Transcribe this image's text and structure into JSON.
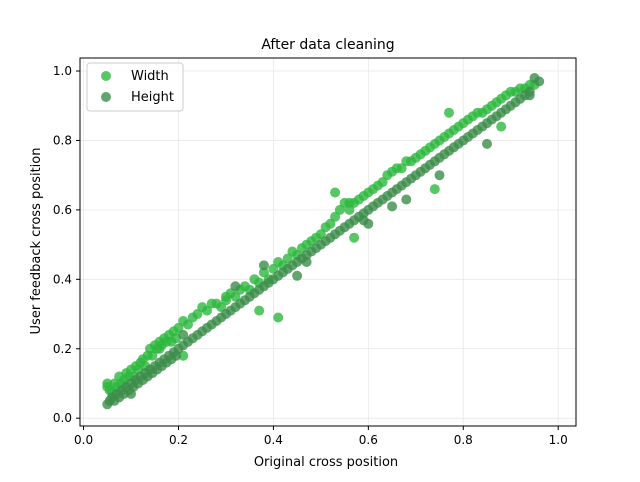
{
  "chart_data": {
    "type": "scatter",
    "title": "After data cleaning",
    "xlabel": "Original cross position",
    "ylabel": "User feedback cross position",
    "xlim": [
      -0.0075,
      1.0375
    ],
    "ylim": [
      -0.0225,
      1.0375
    ],
    "xticks": [
      0.0,
      0.2,
      0.4,
      0.6,
      0.8,
      1.0
    ],
    "xtick_labels": [
      "0.0",
      "0.2",
      "0.4",
      "0.6",
      "0.8",
      "1.0"
    ],
    "yticks": [
      0.0,
      0.2,
      0.4,
      0.6,
      0.8,
      1.0
    ],
    "ytick_labels": [
      "0.0",
      "0.2",
      "0.4",
      "0.6",
      "0.8",
      "1.0"
    ],
    "grid": true,
    "legend_position": "top-left",
    "series": [
      {
        "name": "Width",
        "color": "#2db83d",
        "points": [
          [
            0.05,
            0.09
          ],
          [
            0.05,
            0.1
          ],
          [
            0.055,
            0.08
          ],
          [
            0.06,
            0.075
          ],
          [
            0.065,
            0.1
          ],
          [
            0.07,
            0.09
          ],
          [
            0.075,
            0.12
          ],
          [
            0.08,
            0.1
          ],
          [
            0.085,
            0.11
          ],
          [
            0.09,
            0.13
          ],
          [
            0.095,
            0.12
          ],
          [
            0.1,
            0.14
          ],
          [
            0.105,
            0.12
          ],
          [
            0.11,
            0.15
          ],
          [
            0.115,
            0.14
          ],
          [
            0.12,
            0.16
          ],
          [
            0.125,
            0.17
          ],
          [
            0.13,
            0.15
          ],
          [
            0.135,
            0.18
          ],
          [
            0.14,
            0.2
          ],
          [
            0.145,
            0.18
          ],
          [
            0.15,
            0.21
          ],
          [
            0.155,
            0.2
          ],
          [
            0.16,
            0.22
          ],
          [
            0.165,
            0.21
          ],
          [
            0.17,
            0.23
          ],
          [
            0.175,
            0.22
          ],
          [
            0.18,
            0.24
          ],
          [
            0.185,
            0.22
          ],
          [
            0.19,
            0.25
          ],
          [
            0.195,
            0.23
          ],
          [
            0.2,
            0.26
          ],
          [
            0.21,
            0.28
          ],
          [
            0.22,
            0.27
          ],
          [
            0.23,
            0.29
          ],
          [
            0.24,
            0.3
          ],
          [
            0.25,
            0.32
          ],
          [
            0.26,
            0.31
          ],
          [
            0.27,
            0.33
          ],
          [
            0.28,
            0.33
          ],
          [
            0.29,
            0.32
          ],
          [
            0.3,
            0.34
          ],
          [
            0.31,
            0.36
          ],
          [
            0.32,
            0.35
          ],
          [
            0.33,
            0.37
          ],
          [
            0.34,
            0.38
          ],
          [
            0.35,
            0.37
          ],
          [
            0.36,
            0.4
          ],
          [
            0.37,
            0.39
          ],
          [
            0.38,
            0.42
          ],
          [
            0.39,
            0.4
          ],
          [
            0.4,
            0.43
          ],
          [
            0.41,
            0.45
          ],
          [
            0.42,
            0.44
          ],
          [
            0.43,
            0.46
          ],
          [
            0.44,
            0.48
          ],
          [
            0.45,
            0.47
          ],
          [
            0.46,
            0.49
          ],
          [
            0.47,
            0.5
          ],
          [
            0.48,
            0.51
          ],
          [
            0.49,
            0.52
          ],
          [
            0.5,
            0.53
          ],
          [
            0.51,
            0.55
          ],
          [
            0.52,
            0.56
          ],
          [
            0.53,
            0.58
          ],
          [
            0.54,
            0.6
          ],
          [
            0.55,
            0.62
          ],
          [
            0.56,
            0.6
          ],
          [
            0.57,
            0.62
          ],
          [
            0.58,
            0.63
          ],
          [
            0.59,
            0.64
          ],
          [
            0.6,
            0.65
          ],
          [
            0.61,
            0.66
          ],
          [
            0.62,
            0.67
          ],
          [
            0.63,
            0.68
          ],
          [
            0.64,
            0.7
          ],
          [
            0.65,
            0.71
          ],
          [
            0.66,
            0.72
          ],
          [
            0.67,
            0.72
          ],
          [
            0.68,
            0.74
          ],
          [
            0.69,
            0.74
          ],
          [
            0.7,
            0.75
          ],
          [
            0.71,
            0.76
          ],
          [
            0.72,
            0.77
          ],
          [
            0.73,
            0.78
          ],
          [
            0.74,
            0.79
          ],
          [
            0.75,
            0.8
          ],
          [
            0.76,
            0.81
          ],
          [
            0.77,
            0.82
          ],
          [
            0.78,
            0.83
          ],
          [
            0.79,
            0.84
          ],
          [
            0.8,
            0.85
          ],
          [
            0.81,
            0.86
          ],
          [
            0.82,
            0.87
          ],
          [
            0.83,
            0.88
          ],
          [
            0.84,
            0.88
          ],
          [
            0.85,
            0.89
          ],
          [
            0.86,
            0.9
          ],
          [
            0.87,
            0.91
          ],
          [
            0.88,
            0.92
          ],
          [
            0.89,
            0.93
          ],
          [
            0.9,
            0.94
          ],
          [
            0.91,
            0.94
          ],
          [
            0.92,
            0.95
          ],
          [
            0.93,
            0.95
          ],
          [
            0.94,
            0.96
          ],
          [
            0.95,
            0.96
          ],
          [
            0.74,
            0.66
          ],
          [
            0.56,
            0.62
          ],
          [
            0.37,
            0.31
          ],
          [
            0.21,
            0.18
          ],
          [
            0.41,
            0.29
          ],
          [
            0.57,
            0.52
          ],
          [
            0.53,
            0.65
          ],
          [
            0.3,
            0.35
          ],
          [
            0.77,
            0.88
          ],
          [
            0.16,
            0.2
          ],
          [
            0.88,
            0.84
          ]
        ]
      },
      {
        "name": "Height",
        "color": "#3c8d4a",
        "points": [
          [
            0.05,
            0.04
          ],
          [
            0.055,
            0.05
          ],
          [
            0.06,
            0.06
          ],
          [
            0.065,
            0.05
          ],
          [
            0.07,
            0.07
          ],
          [
            0.075,
            0.06
          ],
          [
            0.08,
            0.08
          ],
          [
            0.085,
            0.07
          ],
          [
            0.09,
            0.09
          ],
          [
            0.095,
            0.08
          ],
          [
            0.1,
            0.1
          ],
          [
            0.105,
            0.09
          ],
          [
            0.11,
            0.11
          ],
          [
            0.115,
            0.1
          ],
          [
            0.12,
            0.12
          ],
          [
            0.125,
            0.11
          ],
          [
            0.13,
            0.13
          ],
          [
            0.135,
            0.12
          ],
          [
            0.14,
            0.14
          ],
          [
            0.145,
            0.13
          ],
          [
            0.15,
            0.15
          ],
          [
            0.155,
            0.14
          ],
          [
            0.16,
            0.16
          ],
          [
            0.165,
            0.15
          ],
          [
            0.17,
            0.17
          ],
          [
            0.175,
            0.16
          ],
          [
            0.18,
            0.18
          ],
          [
            0.185,
            0.17
          ],
          [
            0.19,
            0.19
          ],
          [
            0.195,
            0.18
          ],
          [
            0.2,
            0.2
          ],
          [
            0.21,
            0.21
          ],
          [
            0.22,
            0.22
          ],
          [
            0.23,
            0.23
          ],
          [
            0.24,
            0.24
          ],
          [
            0.25,
            0.25
          ],
          [
            0.26,
            0.26
          ],
          [
            0.27,
            0.27
          ],
          [
            0.28,
            0.28
          ],
          [
            0.29,
            0.29
          ],
          [
            0.3,
            0.3
          ],
          [
            0.31,
            0.31
          ],
          [
            0.32,
            0.32
          ],
          [
            0.33,
            0.33
          ],
          [
            0.34,
            0.34
          ],
          [
            0.35,
            0.35
          ],
          [
            0.36,
            0.36
          ],
          [
            0.37,
            0.37
          ],
          [
            0.38,
            0.38
          ],
          [
            0.39,
            0.39
          ],
          [
            0.4,
            0.4
          ],
          [
            0.41,
            0.41
          ],
          [
            0.42,
            0.42
          ],
          [
            0.43,
            0.43
          ],
          [
            0.44,
            0.44
          ],
          [
            0.45,
            0.45
          ],
          [
            0.46,
            0.46
          ],
          [
            0.47,
            0.47
          ],
          [
            0.48,
            0.48
          ],
          [
            0.49,
            0.49
          ],
          [
            0.5,
            0.5
          ],
          [
            0.51,
            0.51
          ],
          [
            0.52,
            0.52
          ],
          [
            0.53,
            0.53
          ],
          [
            0.54,
            0.54
          ],
          [
            0.55,
            0.55
          ],
          [
            0.56,
            0.56
          ],
          [
            0.57,
            0.57
          ],
          [
            0.58,
            0.58
          ],
          [
            0.59,
            0.59
          ],
          [
            0.6,
            0.6
          ],
          [
            0.61,
            0.61
          ],
          [
            0.62,
            0.62
          ],
          [
            0.63,
            0.63
          ],
          [
            0.64,
            0.64
          ],
          [
            0.65,
            0.65
          ],
          [
            0.66,
            0.66
          ],
          [
            0.67,
            0.67
          ],
          [
            0.68,
            0.68
          ],
          [
            0.69,
            0.69
          ],
          [
            0.7,
            0.7
          ],
          [
            0.71,
            0.71
          ],
          [
            0.72,
            0.72
          ],
          [
            0.73,
            0.73
          ],
          [
            0.74,
            0.74
          ],
          [
            0.75,
            0.75
          ],
          [
            0.76,
            0.76
          ],
          [
            0.77,
            0.77
          ],
          [
            0.78,
            0.78
          ],
          [
            0.79,
            0.79
          ],
          [
            0.8,
            0.8
          ],
          [
            0.81,
            0.81
          ],
          [
            0.82,
            0.82
          ],
          [
            0.83,
            0.83
          ],
          [
            0.84,
            0.84
          ],
          [
            0.85,
            0.85
          ],
          [
            0.86,
            0.86
          ],
          [
            0.87,
            0.87
          ],
          [
            0.88,
            0.88
          ],
          [
            0.89,
            0.89
          ],
          [
            0.9,
            0.9
          ],
          [
            0.91,
            0.91
          ],
          [
            0.92,
            0.92
          ],
          [
            0.93,
            0.93
          ],
          [
            0.94,
            0.94
          ],
          [
            0.95,
            0.98
          ],
          [
            0.96,
            0.97
          ],
          [
            0.94,
            0.93
          ],
          [
            0.38,
            0.44
          ],
          [
            0.21,
            0.24
          ],
          [
            0.32,
            0.38
          ],
          [
            0.65,
            0.61
          ],
          [
            0.75,
            0.7
          ],
          [
            0.85,
            0.79
          ],
          [
            0.59,
            0.57
          ],
          [
            0.6,
            0.56
          ],
          [
            0.47,
            0.45
          ],
          [
            0.1,
            0.07
          ],
          [
            0.45,
            0.41
          ],
          [
            0.68,
            0.63
          ]
        ]
      }
    ]
  }
}
